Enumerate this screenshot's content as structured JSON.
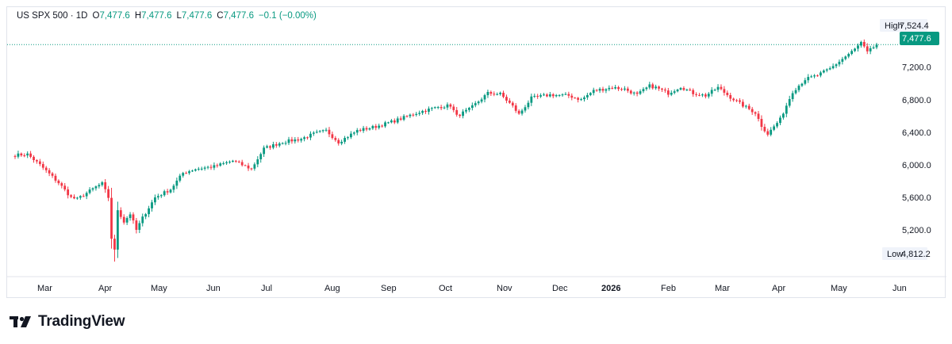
{
  "legend": {
    "symbol": "US SPX 500 · 1D",
    "open_label": "O",
    "open": "7,477.6",
    "high_label": "H",
    "high": "7,477.6",
    "low_label": "L",
    "low": "7,477.6",
    "close_label": "C",
    "close": "7,477.6",
    "change": "−0.1 (−0.00%)"
  },
  "badges": {
    "high_label": "High",
    "high_value": "7,524.4",
    "low_label": "Low",
    "low_value": "4,812.2",
    "last_value": "7,477.6"
  },
  "brand": {
    "name": "TradingView"
  },
  "colors": {
    "up": "#089981",
    "down": "#f23645",
    "last_price": "#089981",
    "grid_border": "#e0e3eb"
  },
  "chart_data": {
    "type": "candlestick",
    "y_ticks": [
      "5,200.0",
      "5,600.0",
      "6,000.0",
      "6,400.0",
      "6,800.0",
      "7,200.0"
    ],
    "y_tick_values": [
      5200,
      5600,
      6000,
      6400,
      6800,
      7200
    ],
    "x_ticks": [
      "Mar",
      "Apr",
      "May",
      "Jun",
      "Jul",
      "Aug",
      "Sep",
      "Oct",
      "Nov",
      "Dec",
      "2026",
      "Feb",
      "Mar",
      "Apr",
      "May",
      "Jun"
    ],
    "x_tick_bold": [
      false,
      false,
      false,
      false,
      false,
      false,
      false,
      false,
      false,
      false,
      true,
      false,
      false,
      false,
      false,
      false
    ],
    "y_range": [
      4700,
      7650
    ],
    "last_price": 7477.6,
    "series_high": 7524.4,
    "series_low": 4812.2,
    "anchors": [
      {
        "t": 0,
        "v": 6120
      },
      {
        "t": 4,
        "v": 6130
      },
      {
        "t": 8,
        "v": 6000
      },
      {
        "t": 14,
        "v": 5780
      },
      {
        "t": 18,
        "v": 5600
      },
      {
        "t": 20,
        "v": 5580
      },
      {
        "t": 26,
        "v": 5730
      },
      {
        "t": 28,
        "v": 5770
      },
      {
        "t": 30,
        "v": 5600
      },
      {
        "t": 31,
        "v": 5100
      },
      {
        "t": 32,
        "v": 4950
      },
      {
        "t": 33,
        "v": 5450
      },
      {
        "t": 35,
        "v": 5300
      },
      {
        "t": 37,
        "v": 5400
      },
      {
        "t": 39,
        "v": 5200
      },
      {
        "t": 41,
        "v": 5350
      },
      {
        "t": 45,
        "v": 5600
      },
      {
        "t": 50,
        "v": 5700
      },
      {
        "t": 54,
        "v": 5900
      },
      {
        "t": 58,
        "v": 5950
      },
      {
        "t": 64,
        "v": 5980
      },
      {
        "t": 70,
        "v": 6050
      },
      {
        "t": 76,
        "v": 5950
      },
      {
        "t": 80,
        "v": 6200
      },
      {
        "t": 86,
        "v": 6280
      },
      {
        "t": 92,
        "v": 6320
      },
      {
        "t": 96,
        "v": 6380
      },
      {
        "t": 100,
        "v": 6420
      },
      {
        "t": 104,
        "v": 6280
      },
      {
        "t": 110,
        "v": 6420
      },
      {
        "t": 116,
        "v": 6470
      },
      {
        "t": 122,
        "v": 6540
      },
      {
        "t": 130,
        "v": 6650
      },
      {
        "t": 136,
        "v": 6710
      },
      {
        "t": 140,
        "v": 6730
      },
      {
        "t": 142,
        "v": 6600
      },
      {
        "t": 146,
        "v": 6680
      },
      {
        "t": 152,
        "v": 6880
      },
      {
        "t": 156,
        "v": 6870
      },
      {
        "t": 160,
        "v": 6720
      },
      {
        "t": 162,
        "v": 6620
      },
      {
        "t": 166,
        "v": 6820
      },
      {
        "t": 172,
        "v": 6860
      },
      {
        "t": 178,
        "v": 6850
      },
      {
        "t": 182,
        "v": 6800
      },
      {
        "t": 186,
        "v": 6910
      },
      {
        "t": 192,
        "v": 6950
      },
      {
        "t": 196,
        "v": 6930
      },
      {
        "t": 200,
        "v": 6860
      },
      {
        "t": 204,
        "v": 6970
      },
      {
        "t": 206,
        "v": 6950
      },
      {
        "t": 210,
        "v": 6880
      },
      {
        "t": 214,
        "v": 6960
      },
      {
        "t": 218,
        "v": 6880
      },
      {
        "t": 222,
        "v": 6850
      },
      {
        "t": 226,
        "v": 6950
      },
      {
        "t": 230,
        "v": 6830
      },
      {
        "t": 234,
        "v": 6730
      },
      {
        "t": 238,
        "v": 6640
      },
      {
        "t": 240,
        "v": 6480
      },
      {
        "t": 242,
        "v": 6380
      },
      {
        "t": 246,
        "v": 6560
      },
      {
        "t": 250,
        "v": 6900
      },
      {
        "t": 254,
        "v": 7050
      },
      {
        "t": 258,
        "v": 7100
      },
      {
        "t": 262,
        "v": 7180
      },
      {
        "t": 266,
        "v": 7300
      },
      {
        "t": 270,
        "v": 7420
      },
      {
        "t": 272,
        "v": 7500
      },
      {
        "t": 274,
        "v": 7380
      },
      {
        "t": 277,
        "v": 7477.6
      }
    ],
    "candle_count": 278
  }
}
